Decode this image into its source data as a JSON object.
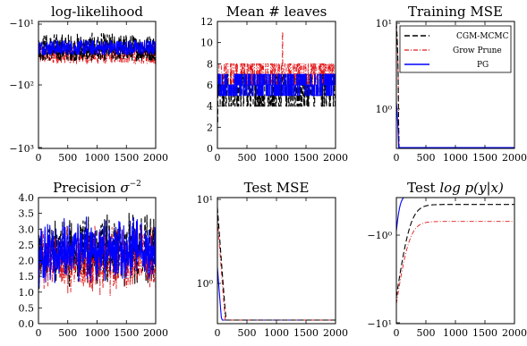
{
  "figure": {
    "panels_note": "2x3 grid of MCMC trace plots comparing three samplers",
    "colors": {
      "CGM-MCMC": "#000000",
      "Grow Prune": "#e31a1c",
      "PG": "#0000ff"
    }
  },
  "chart_data": [
    {
      "type": "line",
      "title": "log-likelihood",
      "xlim": [
        0,
        2000
      ],
      "xticks": [
        "0",
        "500",
        "1000",
        "1500",
        "2000"
      ],
      "yscale": "symlog",
      "yticks": [
        "−10¹",
        "−10²",
        "−10³"
      ],
      "ylim": [
        -1000,
        -10
      ],
      "series": [
        {
          "name": "CGM-MCMC",
          "band": [
            -40,
            -14
          ],
          "center": -22
        },
        {
          "name": "Grow Prune",
          "band": [
            -45,
            -20
          ],
          "center": -28
        },
        {
          "name": "PG",
          "band": [
            -32,
            -18
          ],
          "center": -24
        }
      ]
    },
    {
      "type": "line",
      "title": "Mean # leaves",
      "xlim": [
        0,
        2000
      ],
      "xticks": [
        "0",
        "500",
        "1000",
        "1500",
        "2000"
      ],
      "yticks": [
        "0",
        "2",
        "4",
        "6",
        "8",
        "10",
        "12"
      ],
      "ylim": [
        0,
        12
      ],
      "series": [
        {
          "name": "CGM-MCMC",
          "levels": [
            4,
            5,
            6,
            7
          ],
          "start": 2.5
        },
        {
          "name": "Grow Prune",
          "levels": [
            6,
            7,
            8
          ],
          "max_value": 11
        },
        {
          "name": "PG",
          "levels": [
            5,
            6,
            7
          ]
        }
      ]
    },
    {
      "type": "line",
      "title": "Training MSE",
      "xlim": [
        0,
        2000
      ],
      "xticks": [
        "0",
        "500",
        "1000",
        "1500",
        "2000"
      ],
      "yscale": "log",
      "yticks": [
        "10¹",
        "10⁰"
      ],
      "series": [
        {
          "name": "CGM-MCMC",
          "start": 10,
          "steady": 0.08
        },
        {
          "name": "Grow Prune",
          "start": 10,
          "steady": 0.1
        },
        {
          "name": "PG",
          "start": 1.2,
          "steady": 0.08
        }
      ],
      "legend": {
        "position": "top-right",
        "entries": [
          "CGM-MCMC",
          "Grow Prune",
          "PG"
        ]
      }
    },
    {
      "type": "line",
      "title": "Precision σ⁻²",
      "title_main": "Precision ",
      "title_sym": "σ",
      "title_sup": "−2",
      "xlim": [
        0,
        2000
      ],
      "xticks": [
        "0",
        "500",
        "1000",
        "1500",
        "2000"
      ],
      "yticks": [
        "0.0",
        "0.5",
        "1.0",
        "1.5",
        "2.0",
        "2.5",
        "3.0",
        "3.5",
        "4.0"
      ],
      "ylim": [
        0,
        4
      ],
      "series": [
        {
          "name": "CGM-MCMC",
          "band": [
            1.0,
            3.6
          ],
          "center": 2.2
        },
        {
          "name": "Grow Prune",
          "band": [
            0.8,
            3.2
          ],
          "center": 1.9
        },
        {
          "name": "PG",
          "band": [
            1.1,
            3.5
          ],
          "center": 2.1
        }
      ]
    },
    {
      "type": "line",
      "title": "Test MSE",
      "xlim": [
        0,
        2000
      ],
      "xticks": [
        "0",
        "500",
        "1000",
        "1500",
        "2000"
      ],
      "yscale": "log",
      "yticks": [
        "10¹",
        "10⁰"
      ],
      "series": [
        {
          "name": "CGM-MCMC",
          "start": 8,
          "steady": 0.05
        },
        {
          "name": "Grow Prune",
          "start": 6,
          "steady": 0.05
        },
        {
          "name": "PG",
          "start": 1.5,
          "steady": 0.05
        }
      ]
    },
    {
      "type": "line",
      "title": "Test log p(y|x)",
      "title_main": "Test ",
      "title_math": "log p(y|x)",
      "xlim": [
        0,
        2000
      ],
      "xticks": [
        "0",
        "500",
        "1000",
        "1500",
        "2000"
      ],
      "yscale": "symlog",
      "yticks": [
        "−10⁰",
        "−10¹"
      ],
      "series": [
        {
          "name": "CGM-MCMC",
          "start": -5,
          "steady": -0.45
        },
        {
          "name": "Grow Prune",
          "start": -6,
          "steady": -0.7
        },
        {
          "name": "PG",
          "start": -0.9,
          "steady": -0.35
        }
      ]
    }
  ]
}
